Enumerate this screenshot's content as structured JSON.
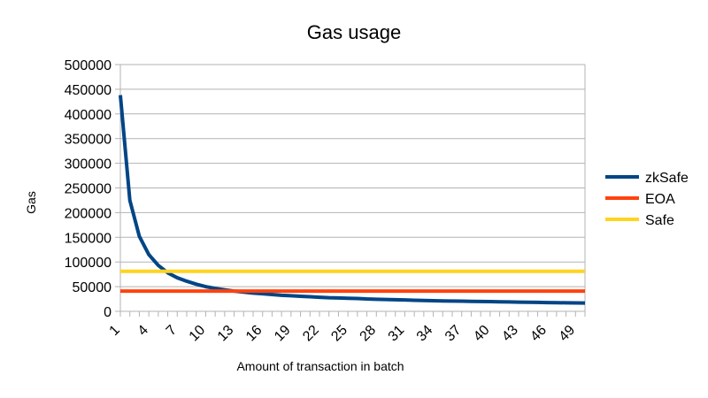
{
  "chart_data": {
    "type": "line",
    "title": "Gas usage",
    "xlabel": "Amount of transaction in batch",
    "ylabel": "Gas",
    "x": [
      1,
      2,
      3,
      4,
      5,
      6,
      7,
      8,
      9,
      10,
      11,
      12,
      13,
      14,
      15,
      16,
      17,
      18,
      19,
      20,
      21,
      22,
      23,
      24,
      25,
      26,
      27,
      28,
      29,
      30,
      31,
      32,
      33,
      34,
      35,
      36,
      37,
      38,
      39,
      40,
      41,
      42,
      43,
      44,
      45,
      46,
      47,
      48,
      49,
      50
    ],
    "x_tick_labels": [
      "1",
      "4",
      "7",
      "10",
      "13",
      "16",
      "19",
      "22",
      "25",
      "28",
      "31",
      "34",
      "37",
      "40",
      "43",
      "46",
      "49"
    ],
    "ylim": [
      0,
      500000
    ],
    "y_tick_labels": [
      "0",
      "50000",
      "100000",
      "150000",
      "200000",
      "250000",
      "300000",
      "350000",
      "400000",
      "450000",
      "500000"
    ],
    "grid": true,
    "legend_position": "right",
    "series": [
      {
        "name": "zkSafe",
        "color": "#004586",
        "values": [
          438000,
          225000,
          152000,
          115000,
          93000,
          78000,
          68000,
          61000,
          55000,
          50000,
          46500,
          43500,
          41000,
          39000,
          37000,
          35500,
          34000,
          32500,
          31500,
          30500,
          29500,
          28500,
          27500,
          27000,
          26500,
          26000,
          25000,
          24500,
          24000,
          23500,
          23000,
          22500,
          22000,
          21500,
          21000,
          20800,
          20500,
          20200,
          19900,
          19600,
          19300,
          19000,
          18700,
          18400,
          18100,
          17800,
          17500,
          17300,
          17100,
          16900
        ]
      },
      {
        "name": "EOA",
        "color": "#ff420e",
        "values": [
          41000,
          41000,
          41000,
          41000,
          41000,
          41000,
          41000,
          41000,
          41000,
          41000,
          41000,
          41000,
          41000,
          41000,
          41000,
          41000,
          41000,
          41000,
          41000,
          41000,
          41000,
          41000,
          41000,
          41000,
          41000,
          41000,
          41000,
          41000,
          41000,
          41000,
          41000,
          41000,
          41000,
          41000,
          41000,
          41000,
          41000,
          41000,
          41000,
          41000,
          41000,
          41000,
          41000,
          41000,
          41000,
          41000,
          41000,
          41000,
          41000,
          41000
        ]
      },
      {
        "name": "Safe",
        "color": "#ffd320",
        "values": [
          81000,
          81000,
          81000,
          81000,
          81000,
          81000,
          81000,
          81000,
          81000,
          81000,
          81000,
          81000,
          81000,
          81000,
          81000,
          81000,
          81000,
          81000,
          81000,
          81000,
          81000,
          81000,
          81000,
          81000,
          81000,
          81000,
          81000,
          81000,
          81000,
          81000,
          81000,
          81000,
          81000,
          81000,
          81000,
          81000,
          81000,
          81000,
          81000,
          81000,
          81000,
          81000,
          81000,
          81000,
          81000,
          81000,
          81000,
          81000,
          81000,
          81000
        ]
      }
    ]
  }
}
